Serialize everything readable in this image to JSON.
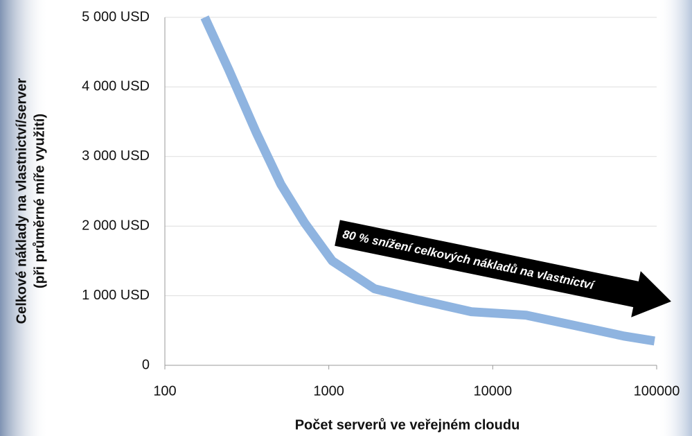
{
  "chart_data": {
    "type": "line",
    "x_label": "Počet serverů ve veřejném cloudu",
    "y_label": [
      "Celkové náklady na vlastnictví/server",
      "(při průměrné míře využití)"
    ],
    "annotation": "80 % snížení celkových nákladů na vlastnictví",
    "x": [
      175,
      245,
      360,
      510,
      710,
      1050,
      1900,
      3400,
      7400,
      16000,
      32000,
      63000,
      97000
    ],
    "values": [
      5000,
      4250,
      3350,
      2600,
      2050,
      1500,
      1100,
      950,
      770,
      720,
      570,
      420,
      350
    ],
    "color": "#8fb4e0",
    "xlog": true,
    "xlim": [
      100,
      100000
    ],
    "xticks": [
      100,
      1000,
      10000,
      100000
    ],
    "ylim": [
      0,
      5000
    ],
    "yticks": [
      0,
      {
        "value": 1000,
        "label": "1 000 USD"
      },
      {
        "value": 2000,
        "label": "2 000 USD"
      },
      {
        "value": 3000,
        "label": "3 000 USD"
      },
      {
        "value": 4000,
        "label": "4 000 USD"
      },
      {
        "value": 5000,
        "label": "5 000 USD"
      }
    ],
    "grid": true
  }
}
